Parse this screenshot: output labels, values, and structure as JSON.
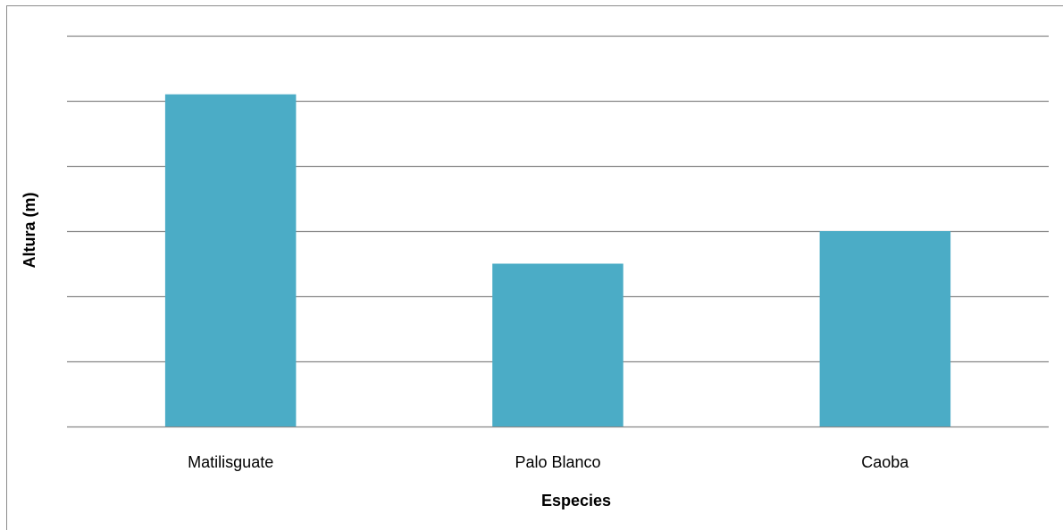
{
  "chart_data": {
    "type": "bar",
    "title": "",
    "xlabel": "Especies",
    "ylabel": "Altura (m)",
    "categories": [
      "Matilisguate",
      "Palo Blanco",
      "Caoba"
    ],
    "values": [
      5.1,
      2.5,
      3.0
    ],
    "ylim": [
      0,
      6
    ],
    "gridline_count": 6,
    "grid": true,
    "legend": "none",
    "tick_labels_shown": false,
    "colors": {
      "bar": "#4BACC6",
      "gridline": "#868686",
      "frame": "#8c8c8c"
    }
  }
}
